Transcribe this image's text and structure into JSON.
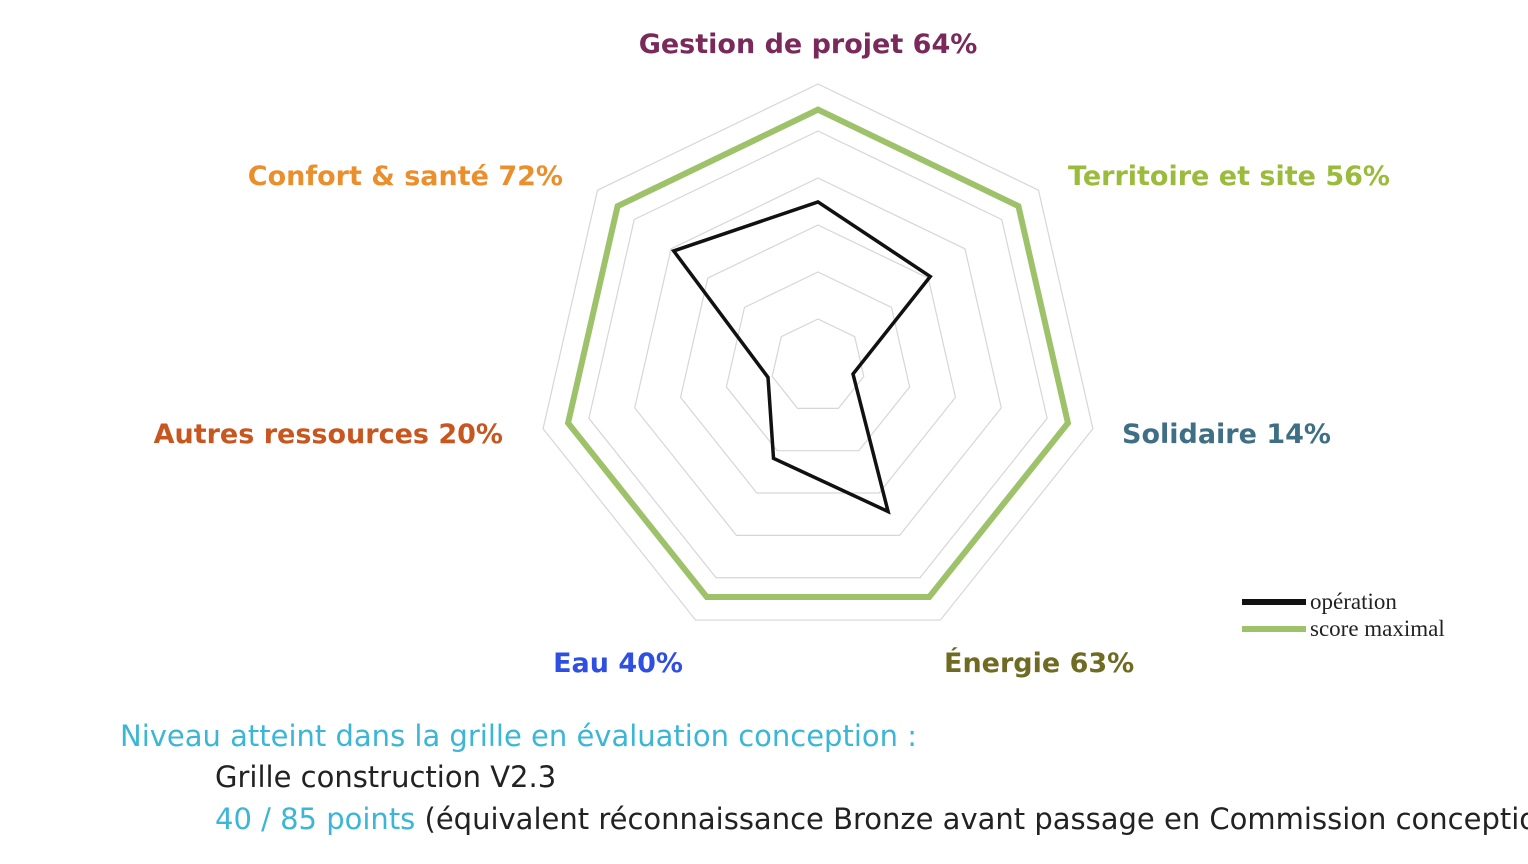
{
  "chart_data": {
    "type": "radar",
    "axes": [
      {
        "name": "Gestion de projet",
        "percent_label": "64%",
        "color": "#7a2a5a"
      },
      {
        "name": "Territoire et site",
        "percent_label": "56%",
        "color": "#9bbb3c"
      },
      {
        "name": "Solidaire",
        "percent_label": "14%",
        "color": "#3f6f85"
      },
      {
        "name": "Énergie",
        "percent_label": "63%",
        "color": "#6f6b23"
      },
      {
        "name": "Eau",
        "percent_label": "40%",
        "color": "#2f4fe3"
      },
      {
        "name": "Autres ressources",
        "percent_label": "20%",
        "color": "#c8561f"
      },
      {
        "name": "Confort & santé",
        "percent_label": "72%",
        "color": "#ea8f2c"
      }
    ],
    "grid_levels": 6,
    "series": [
      {
        "name": "opération",
        "color": "#111111",
        "values": [
          64,
          56,
          14,
          63,
          40,
          20,
          72
        ]
      },
      {
        "name": "score maximal",
        "color": "#9dc26a",
        "values": [
          100,
          100,
          100,
          100,
          100,
          100,
          100
        ]
      }
    ],
    "range": [
      0,
      110
    ],
    "legend_position": "bottom-right"
  },
  "summary": {
    "heading": "Niveau atteint dans la grille en évaluation conception :",
    "grid_name": "Grille construction V2.3",
    "points": "40 / 85 points",
    "note": " (équivalent réconnaissance Bronze avant passage en Commission conception)"
  }
}
